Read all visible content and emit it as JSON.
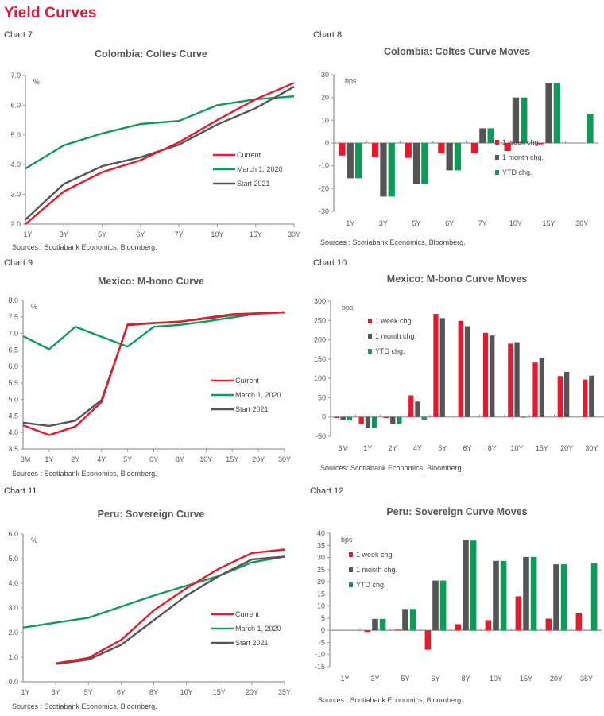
{
  "page": {
    "title": "Yield Curves"
  },
  "legend_line": [
    "Current",
    "March 1, 2020",
    "Start 2021"
  ],
  "legend_bar": [
    "1 week chg.",
    "1 month chg.",
    "YTD chg."
  ],
  "colors": {
    "current": "#e8192c",
    "march2020": "#0f9a5a",
    "start2021": "#555555",
    "week": "#e8192c",
    "month": "#555555",
    "ytd": "#0f9a5a",
    "axis": "#999999",
    "tick_text": "#555555"
  },
  "chart_data": [
    {
      "id": "chart7",
      "label": "Chart 7",
      "type": "line",
      "title": "Colombia: Coltes Curve",
      "unit": "%",
      "ylim": [
        2.0,
        7.0
      ],
      "yticks": [
        "2.0",
        "3.0",
        "4.0",
        "5.0",
        "6.0",
        "7.0"
      ],
      "categories": [
        "1Y",
        "3Y",
        "5Y",
        "6Y",
        "7Y",
        "10Y",
        "15Y",
        "30Y"
      ],
      "series": [
        {
          "name": "Current",
          "values": [
            2.0,
            3.1,
            3.75,
            4.15,
            4.75,
            5.5,
            6.2,
            6.75
          ]
        },
        {
          "name": "March 1, 2020",
          "values": [
            3.87,
            4.65,
            5.05,
            5.37,
            5.47,
            6.0,
            6.2,
            6.3
          ]
        },
        {
          "name": "Start 2021",
          "values": [
            2.15,
            3.35,
            3.95,
            4.25,
            4.67,
            5.35,
            5.9,
            6.62
          ]
        }
      ],
      "legend": "center-right",
      "source": "Sources : Scotiabank Economics, Bloomberg."
    },
    {
      "id": "chart8",
      "label": "Chart 8",
      "type": "bar",
      "title": "Colombia: Coltes Curve Moves",
      "unit": "bps",
      "ylim": [
        -30,
        30
      ],
      "yticks": [
        "-30",
        "-20",
        "-10",
        "0",
        "10",
        "20",
        "30"
      ],
      "categories": [
        "1Y",
        "3Y",
        "5Y",
        "6Y",
        "7Y",
        "10Y",
        "15Y",
        "30Y"
      ],
      "series": [
        {
          "name": "1 week chg.",
          "values": [
            -5.5,
            -6,
            -6.5,
            -4.5,
            -4.5,
            -3.5,
            -0.5,
            null
          ]
        },
        {
          "name": "1 month chg.",
          "values": [
            -15.5,
            -23.5,
            -18,
            -12,
            6.5,
            20,
            26.5,
            null
          ]
        },
        {
          "name": "YTD chg.",
          "values": [
            -15.5,
            -23.5,
            -18,
            -12,
            6.5,
            20,
            26.5,
            12.7
          ]
        }
      ],
      "legend": "lower-right",
      "source": "Sources : Scotiabank Economics, Bloomberg."
    },
    {
      "id": "chart9",
      "label": "Chart 9",
      "type": "line",
      "title": "Mexico: M-bono Curve",
      "unit": "%",
      "ylim": [
        3.5,
        8.0
      ],
      "yticks": [
        "3.5",
        "4.0",
        "4.5",
        "5.0",
        "5.5",
        "6.0",
        "6.5",
        "7.0",
        "7.5",
        "8.0"
      ],
      "categories": [
        "3M",
        "1Y",
        "2Y",
        "4Y",
        "5Y",
        "6Y",
        "8Y",
        "10Y",
        "15Y",
        "20Y",
        "30Y"
      ],
      "series": [
        {
          "name": "Current",
          "values": [
            4.22,
            3.92,
            4.18,
            4.92,
            7.27,
            7.32,
            7.35,
            7.47,
            7.58,
            7.61,
            7.64
          ]
        },
        {
          "name": "March 1, 2020",
          "values": [
            6.92,
            6.52,
            7.2,
            null,
            6.6,
            7.2,
            7.26,
            7.36,
            7.48,
            7.6,
            7.64
          ]
        },
        {
          "name": "Start 2021",
          "values": [
            4.3,
            4.2,
            4.36,
            4.98,
            7.25,
            7.31,
            7.36,
            7.45,
            7.55,
            7.6,
            7.64
          ]
        }
      ],
      "legend": "center-right",
      "source": "Sources : Scotiabank Economics, Bloomberg."
    },
    {
      "id": "chart10",
      "label": "Chart 10",
      "type": "bar",
      "title": "Mexico: M-bono Curve Moves",
      "unit": "bps",
      "ylim": [
        -50,
        300
      ],
      "yticks": [
        "-50",
        "0",
        "50",
        "100",
        "150",
        "200",
        "250",
        "300"
      ],
      "categories": [
        "3M",
        "1Y",
        "2Y",
        "4Y",
        "5Y",
        "6Y",
        "8Y",
        "10Y",
        "15Y",
        "20Y",
        "30Y"
      ],
      "series": [
        {
          "name": "1 week chg.",
          "values": [
            -3,
            -18,
            -3,
            56,
            267,
            249,
            218,
            190,
            141,
            106,
            97
          ]
        },
        {
          "name": "1 month chg.",
          "values": [
            -7,
            -28,
            -17,
            40,
            256,
            235,
            211,
            194,
            152,
            117,
            107
          ]
        },
        {
          "name": "YTD chg.",
          "values": [
            -9,
            -28,
            -17,
            -7,
            null,
            null,
            null,
            -2,
            null,
            null,
            null
          ]
        }
      ],
      "legend": "upper-left",
      "source": "Sources: Scotiabank Economics, Bloomberg."
    },
    {
      "id": "chart11",
      "label": "Chart 11",
      "type": "line",
      "title": "Peru: Sovereign Curve",
      "unit": "%",
      "ylim": [
        0.0,
        6.0
      ],
      "yticks": [
        "0.0",
        "1.0",
        "2.0",
        "3.0",
        "4.0",
        "5.0",
        "6.0"
      ],
      "categories": [
        "1Y",
        "3Y",
        "5Y",
        "6Y",
        "8Y",
        "10Y",
        "15Y",
        "20Y",
        "35Y"
      ],
      "series": [
        {
          "name": "Current",
          "values": [
            null,
            0.75,
            0.97,
            1.7,
            2.9,
            3.8,
            4.6,
            5.23,
            5.37
          ]
        },
        {
          "name": "March 1, 2020",
          "values": [
            2.2,
            2.4,
            2.6,
            3.05,
            3.5,
            3.9,
            4.3,
            4.85,
            5.08
          ]
        },
        {
          "name": "Start 2021",
          "values": [
            null,
            0.72,
            0.9,
            1.5,
            2.5,
            3.5,
            4.3,
            4.97,
            5.08
          ]
        }
      ],
      "legend": "center-right",
      "source": "Sources : Scotiabank Economics, Bloomberg."
    },
    {
      "id": "chart12",
      "label": "Chart 12",
      "type": "bar",
      "title": "Peru: Sovereign Curve Moves",
      "unit": "bps",
      "ylim": [
        -15,
        40
      ],
      "yticks": [
        "-15",
        "-10",
        "-5",
        "0",
        "5",
        "10",
        "15",
        "20",
        "25",
        "30",
        "35",
        "40"
      ],
      "categories": [
        "1Y",
        "3Y",
        "5Y",
        "6Y",
        "8Y",
        "10Y",
        "15Y",
        "20Y",
        "35Y"
      ],
      "series": [
        {
          "name": "1 week chg.",
          "values": [
            null,
            -0.7,
            0.3,
            -8,
            2.5,
            4.2,
            14,
            4.8,
            7.2
          ]
        },
        {
          "name": "1 month chg.",
          "values": [
            null,
            4.7,
            8.8,
            20.5,
            37.2,
            28.6,
            30.2,
            27.2,
            null
          ]
        },
        {
          "name": "YTD chg.",
          "values": [
            null,
            4.7,
            8.8,
            20.5,
            37,
            28.6,
            30.2,
            27.2,
            27.7
          ]
        }
      ],
      "legend": "upper-left",
      "source": "Sources : Scotiabank Economics, Bloomberg."
    }
  ]
}
